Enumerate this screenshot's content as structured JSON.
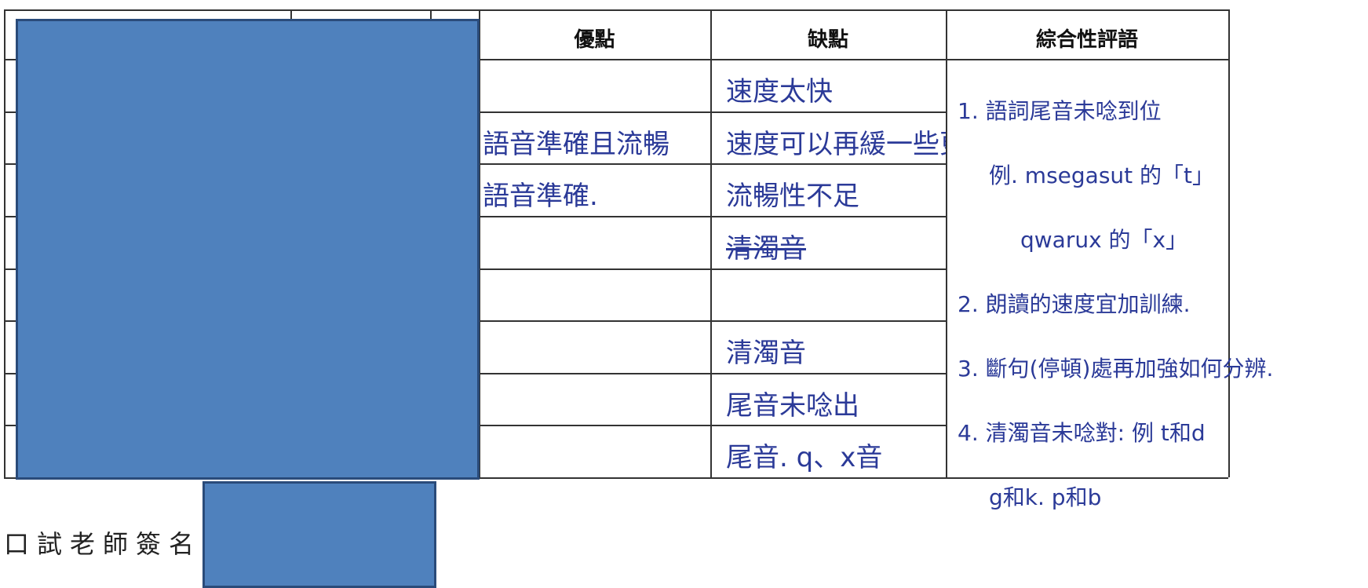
{
  "table": {
    "header": [
      "優點",
      "缺點",
      "綜合性評語"
    ],
    "rows": [
      {
        "cons": "速度太快"
      },
      {
        "pros": "語音準確且流暢",
        "cons": "速度可以再緩一些更好."
      },
      {
        "pros": "語音準確.",
        "cons": "流暢性不足"
      },
      {
        "cons": "清濁音",
        "strikethrough": true
      },
      {},
      {
        "cons": "清濁音"
      },
      {
        "cons": "尾音未唸出"
      },
      {
        "cons": "尾音. q、x音"
      }
    ],
    "comment": [
      "1. 語詞尾音未唸到位",
      "例. msegasut 的「t」",
      "qwarux 的「x」",
      "2. 朗讀的速度宜加訓練.",
      "3. 斷句(停頓)處再加強如何分辨.",
      "4. 清濁音未唸對: 例 t和d",
      "g和k. p和b"
    ]
  },
  "footer": {
    "signature_label": "口試老師簽名"
  }
}
